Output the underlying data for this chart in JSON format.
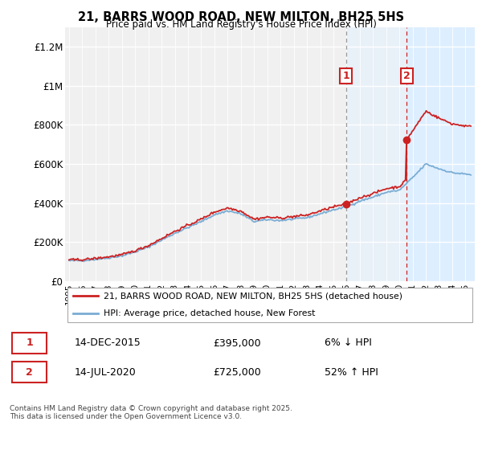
{
  "title": "21, BARRS WOOD ROAD, NEW MILTON, BH25 5HS",
  "subtitle": "Price paid vs. HM Land Registry's House Price Index (HPI)",
  "legend_line1": "21, BARRS WOOD ROAD, NEW MILTON, BH25 5HS (detached house)",
  "legend_line2": "HPI: Average price, detached house, New Forest",
  "sale1_label": "1",
  "sale1_date": "14-DEC-2015",
  "sale1_price": "£395,000",
  "sale1_hpi": "6% ↓ HPI",
  "sale2_label": "2",
  "sale2_date": "14-JUL-2020",
  "sale2_price": "£725,000",
  "sale2_hpi": "52% ↑ HPI",
  "footnote": "Contains HM Land Registry data © Crown copyright and database right 2025.\nThis data is licensed under the Open Government Licence v3.0.",
  "ylim": [
    0,
    1300000
  ],
  "yticks": [
    0,
    200000,
    400000,
    600000,
    800000,
    1000000,
    1200000
  ],
  "ytick_labels": [
    "£0",
    "£200K",
    "£400K",
    "£600K",
    "£800K",
    "£1M",
    "£1.2M"
  ],
  "hpi_color": "#7aadd4",
  "price_color": "#cc2222",
  "sale1_vline_color": "#999999",
  "sale2_vline_color": "#cc2222",
  "plot_bg_color": "#f0f0f0",
  "shade_color": "#ddeeff",
  "sale1_x_year": 2015.96,
  "sale2_x_year": 2020.54,
  "sale1_marker_price": 395000,
  "sale2_marker_price": 725000,
  "xmin": 1994.7,
  "xmax": 2025.7
}
